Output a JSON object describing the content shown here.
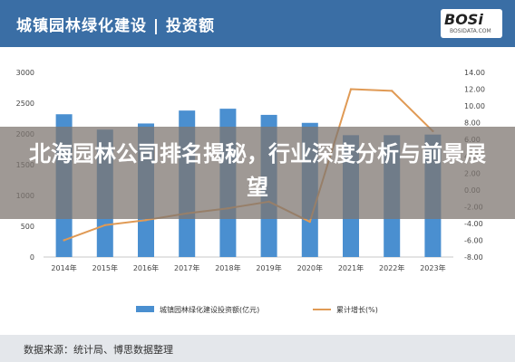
{
  "header": {
    "title": "城镇园林绿化建设 | 投资额",
    "logo_text": "BOSi",
    "logo_sub": "BOSIDATA.COM"
  },
  "banner": {
    "headline": "北海园林公司排名揭秘，行业深度分析与前景展望"
  },
  "footer": {
    "source": "数据来源：统计局、博思数据整理"
  },
  "colors": {
    "header_bg": "#3a6ea5",
    "bar": "#4a8fd0",
    "line": "#e09a55"
  },
  "chart_data": {
    "type": "bar",
    "categories": [
      "2014年",
      "2015年",
      "2016年",
      "2017年",
      "2018年",
      "2019年",
      "2020年",
      "2021年",
      "2022年",
      "2023年"
    ],
    "series": [
      {
        "name": "城镇园林绿化建设投资额(亿元)",
        "type": "bar",
        "axis": "left",
        "values": [
          2320,
          2070,
          2170,
          2380,
          2410,
          2310,
          2180,
          1980,
          1980,
          1990
        ]
      },
      {
        "name": "累计增长(%)",
        "type": "line",
        "axis": "right",
        "values": [
          -6.0,
          -4.2,
          -3.6,
          -2.8,
          -2.2,
          -1.4,
          -3.8,
          12.0,
          11.8,
          7.0
        ]
      }
    ],
    "y_left": {
      "min": 0,
      "max": 3000,
      "ticks": [
        "0",
        "500",
        "1000",
        "1500",
        "2000",
        "2500",
        "3000"
      ]
    },
    "y_right": {
      "min": -8,
      "max": 14,
      "ticks": [
        "-8.00",
        "-6.00",
        "-4.00",
        "-2.00",
        "0.00",
        "2.00",
        "4.00",
        "6.00",
        "8.00",
        "10.00",
        "12.00",
        "14.00"
      ]
    },
    "grid": false,
    "legend_position": "bottom"
  }
}
